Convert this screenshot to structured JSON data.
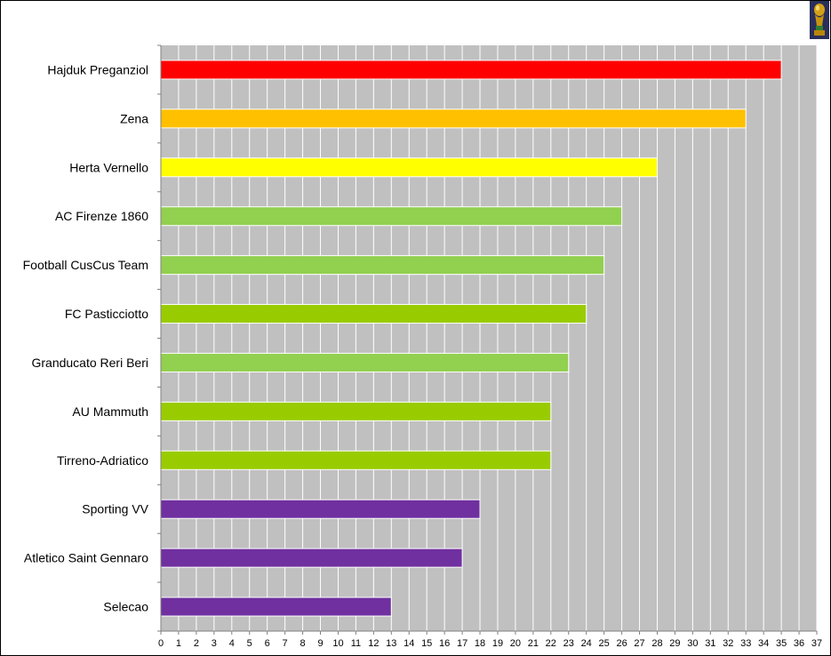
{
  "chart_data": {
    "type": "bar",
    "orientation": "horizontal",
    "categories": [
      "Hajduk Preganziol",
      "Zena",
      "Herta Vernello",
      "AC Firenze 1860",
      "Football CusCus Team",
      "FC Pasticciotto",
      "Granducato Reri Beri",
      "AU Mammuth",
      "Tirreno-Adriatico",
      "Sporting VV",
      "Atletico Saint Gennaro",
      "Selecao"
    ],
    "values": [
      35,
      33,
      28,
      26,
      25,
      24,
      23,
      22,
      22,
      18,
      17,
      13
    ],
    "bar_colors": [
      "#ff0000",
      "#ffc000",
      "#ffff00",
      "#92d050",
      "#92d050",
      "#99cc00",
      "#92d050",
      "#99cc00",
      "#99cc00",
      "#7030a0",
      "#7030a0",
      "#7030a0"
    ],
    "xlim": [
      0,
      37
    ],
    "x_ticks": [
      0,
      1,
      2,
      3,
      4,
      5,
      6,
      7,
      8,
      9,
      10,
      11,
      12,
      13,
      14,
      15,
      16,
      17,
      18,
      19,
      20,
      21,
      22,
      23,
      24,
      25,
      26,
      27,
      28,
      29,
      30,
      31,
      32,
      33,
      34,
      35,
      36,
      37
    ],
    "plot_background": "#c0c0c0",
    "grid": true,
    "grid_color": "#ffffff",
    "legend": "none"
  },
  "header": {
    "logo": "trophy-icon"
  }
}
